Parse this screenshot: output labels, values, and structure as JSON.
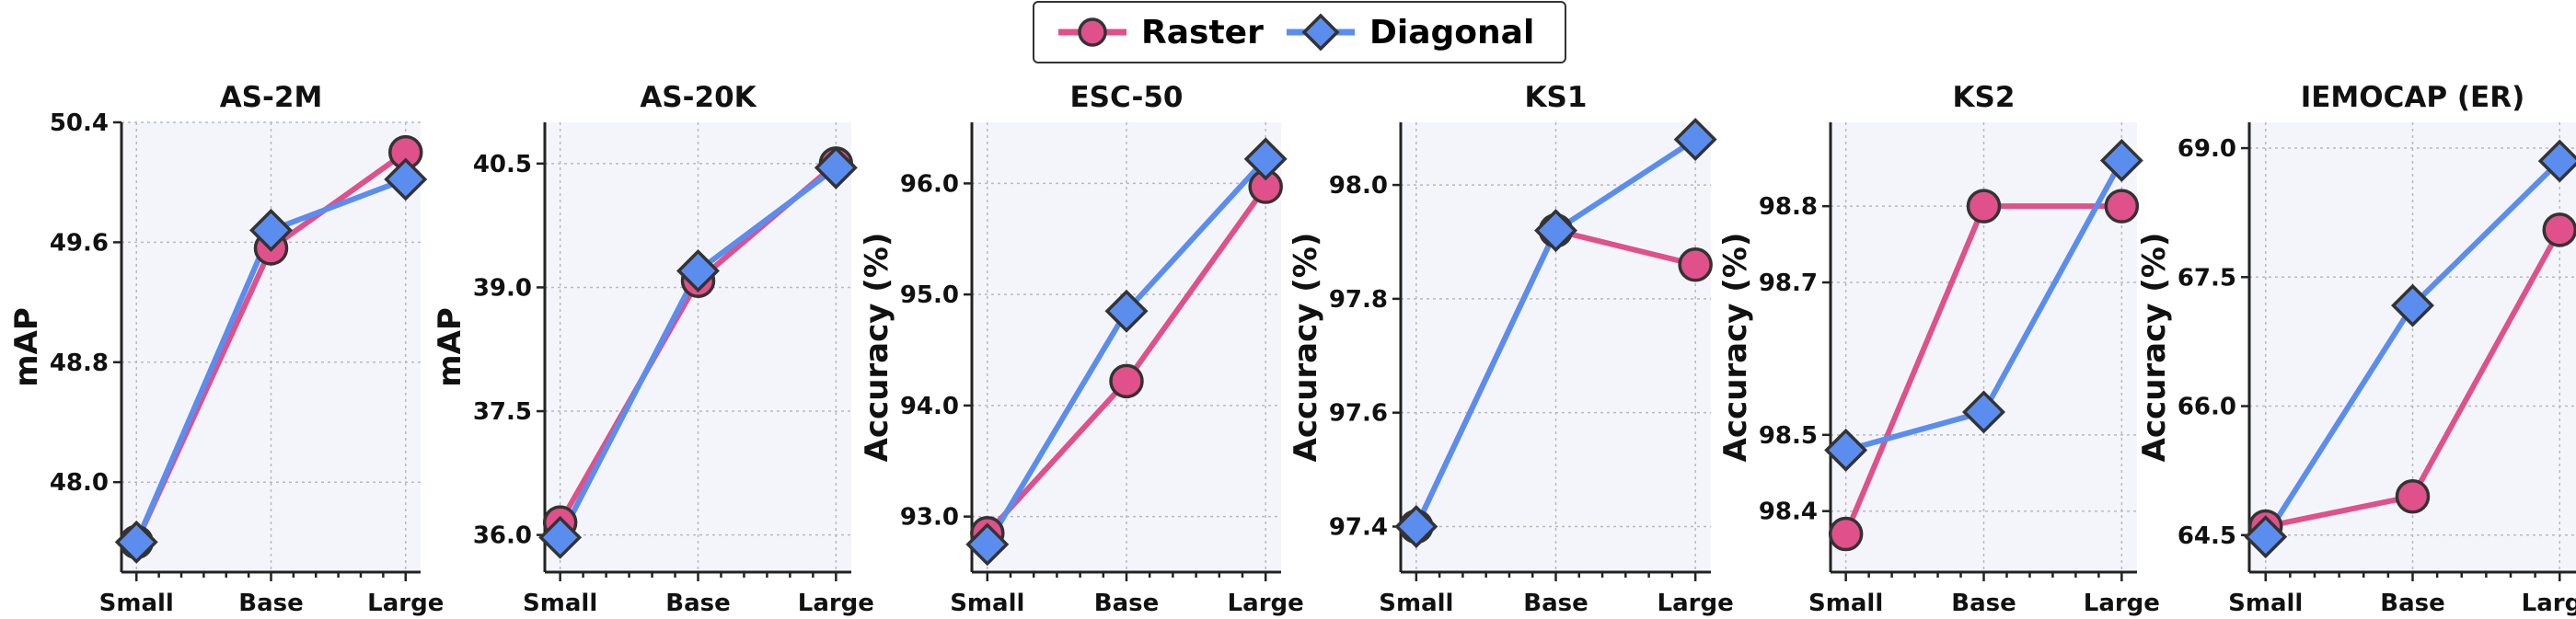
{
  "legend": {
    "series": [
      {
        "label": "Raster",
        "color": "#e0508a",
        "marker": "circle"
      },
      {
        "label": "Diagonal",
        "color": "#5b8def",
        "marker": "diamond"
      }
    ]
  },
  "chart_data": [
    {
      "type": "line",
      "title": "AS-2M",
      "ylabel": "mAP",
      "categories": [
        "Small",
        "Base",
        "Large"
      ],
      "yticks": [
        "48.0",
        "48.8",
        "49.6",
        "50.4"
      ],
      "ylim": [
        47.4,
        50.4
      ],
      "series": [
        {
          "name": "Raster",
          "values": [
            47.6,
            49.56,
            50.2
          ]
        },
        {
          "name": "Diagonal",
          "values": [
            47.6,
            49.68,
            50.02
          ]
        }
      ]
    },
    {
      "type": "line",
      "title": "AS-20K",
      "ylabel": "mAP",
      "categories": [
        "Small",
        "Base",
        "Large"
      ],
      "yticks": [
        "36.0",
        "37.5",
        "39.0",
        "40.5"
      ],
      "ylim": [
        35.55,
        41.0
      ],
      "series": [
        {
          "name": "Raster",
          "values": [
            36.15,
            39.08,
            40.5
          ]
        },
        {
          "name": "Diagonal",
          "values": [
            35.97,
            39.2,
            40.45
          ]
        }
      ]
    },
    {
      "type": "line",
      "title": "ESC-50",
      "ylabel": "Accuracy (%)",
      "categories": [
        "Small",
        "Base",
        "Large"
      ],
      "yticks": [
        "93.0",
        "94.0",
        "95.0",
        "96.0"
      ],
      "ylim": [
        92.5,
        96.55
      ],
      "series": [
        {
          "name": "Raster",
          "values": [
            92.85,
            94.22,
            95.97
          ]
        },
        {
          "name": "Diagonal",
          "values": [
            92.75,
            94.85,
            96.22
          ]
        }
      ]
    },
    {
      "type": "line",
      "title": "KS1",
      "ylabel": "Accuracy (%)",
      "categories": [
        "Small",
        "Base",
        "Large"
      ],
      "yticks": [
        "97.4",
        "97.6",
        "97.8",
        "98.0"
      ],
      "ylim": [
        97.32,
        98.11
      ],
      "series": [
        {
          "name": "Raster",
          "values": [
            97.4,
            97.92,
            97.86
          ]
        },
        {
          "name": "Diagonal",
          "values": [
            97.4,
            97.92,
            98.08
          ]
        }
      ]
    },
    {
      "type": "line",
      "title": "KS2",
      "ylabel": "Accuracy (%)",
      "categories": [
        "Small",
        "Base",
        "Large"
      ],
      "yticks": [
        "98.4",
        "98.5",
        "98.7",
        "98.8"
      ],
      "ylim": [
        98.32,
        98.91
      ],
      "series": [
        {
          "name": "Raster",
          "values": [
            98.37,
            98.8,
            98.8
          ]
        },
        {
          "name": "Diagonal",
          "values": [
            98.48,
            98.53,
            98.86
          ]
        }
      ]
    },
    {
      "type": "line",
      "title": "IEMOCAP (ER)",
      "ylabel": "Accuracy (%)",
      "categories": [
        "Small",
        "Base",
        "Large"
      ],
      "yticks": [
        "64.5",
        "66.0",
        "67.5",
        "69.0"
      ],
      "ylim": [
        64.07,
        69.3
      ],
      "series": [
        {
          "name": "Raster",
          "values": [
            64.6,
            64.95,
            68.05
          ]
        },
        {
          "name": "Diagonal",
          "values": [
            64.48,
            67.17,
            68.85
          ]
        }
      ]
    }
  ]
}
